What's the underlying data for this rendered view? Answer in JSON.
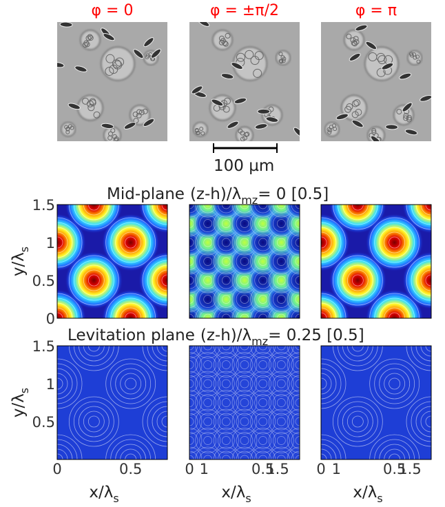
{
  "columns": [
    "φ = 0",
    "φ = ±π/2",
    "φ = π"
  ],
  "scale_bar": "100 µm",
  "rows": [
    {
      "label": "Mid-plane",
      "expr": "(z-h)/λ",
      "sub": "mz",
      "rest": "= 0 [0.5]",
      "y_ticks": [
        "1.5",
        "1",
        "0.5",
        "0"
      ]
    },
    {
      "label": "Levitation plane",
      "expr": "(z-h)/λ",
      "sub": "mz",
      "rest": "= 0.25 [0.5]",
      "y_ticks": [
        "1.5",
        "1",
        "0.5"
      ]
    }
  ],
  "x_ticks": [
    "0",
    "0.5",
    "1",
    "1.5"
  ],
  "x_label": {
    "text": "x/λ",
    "sub": "s"
  },
  "y_label": {
    "text": "y/λ",
    "sub": "s"
  }
}
